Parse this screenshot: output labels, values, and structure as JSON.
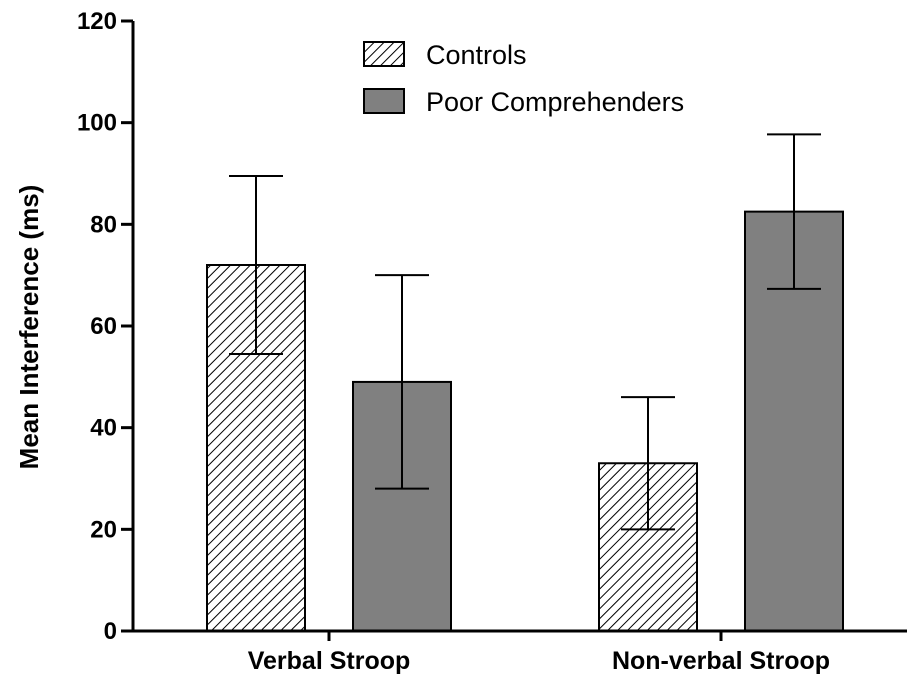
{
  "chart_data": {
    "type": "bar",
    "title": "",
    "xlabel": "",
    "ylabel": "Mean Interference (ms)",
    "ylim": [
      0,
      120
    ],
    "yticks": [
      0,
      20,
      40,
      60,
      80,
      100,
      120
    ],
    "categories": [
      "Verbal Stroop",
      "Non-verbal Stroop"
    ],
    "grid": false,
    "legend_position": "top-center",
    "series": [
      {
        "name": "Controls",
        "values": [
          72,
          33
        ],
        "errors": [
          17.5,
          13
        ],
        "fill": "hatched",
        "color": "#ffffff",
        "stroke": "#000000"
      },
      {
        "name": "Poor Comprehenders",
        "values": [
          49,
          82.5
        ],
        "errors": [
          21,
          15.2
        ],
        "fill": "solid",
        "color": "#808080",
        "stroke": "#000000"
      }
    ]
  }
}
